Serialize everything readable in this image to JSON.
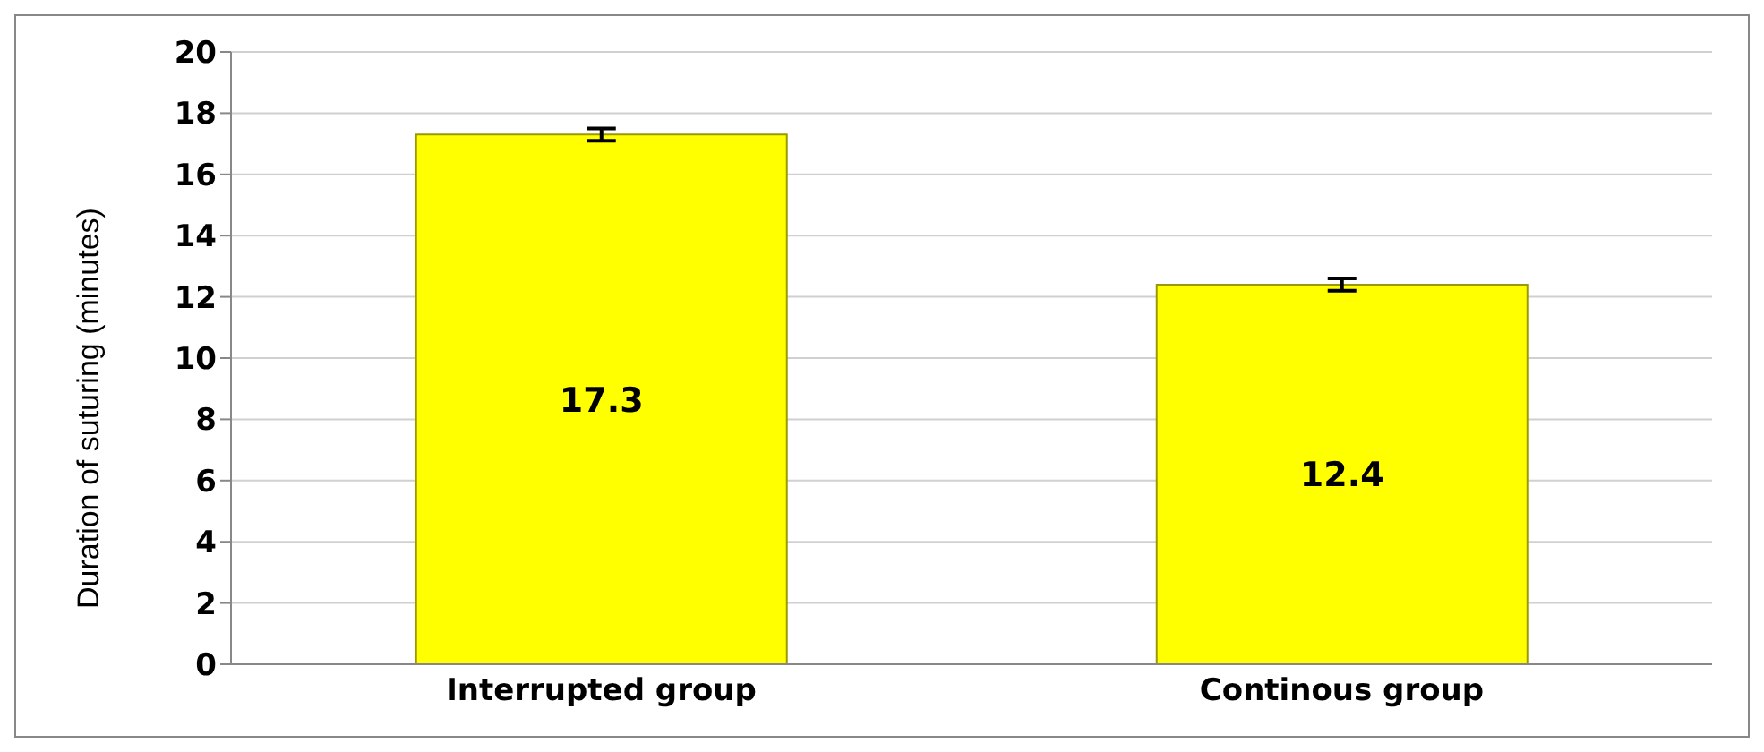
{
  "chart_data": {
    "type": "bar",
    "ylabel": "Duration of suturing (minutes)",
    "categories": [
      "Interrupted group",
      "Continous group"
    ],
    "values": [
      17.3,
      12.4
    ],
    "color": "#ffff00",
    "errors": [
      0.2,
      0.2
    ],
    "ylim": [
      0,
      20
    ],
    "yticks": [
      0,
      2,
      4,
      6,
      8,
      10,
      12,
      14,
      16,
      18,
      20
    ],
    "grid": "y",
    "data_labels": true
  }
}
